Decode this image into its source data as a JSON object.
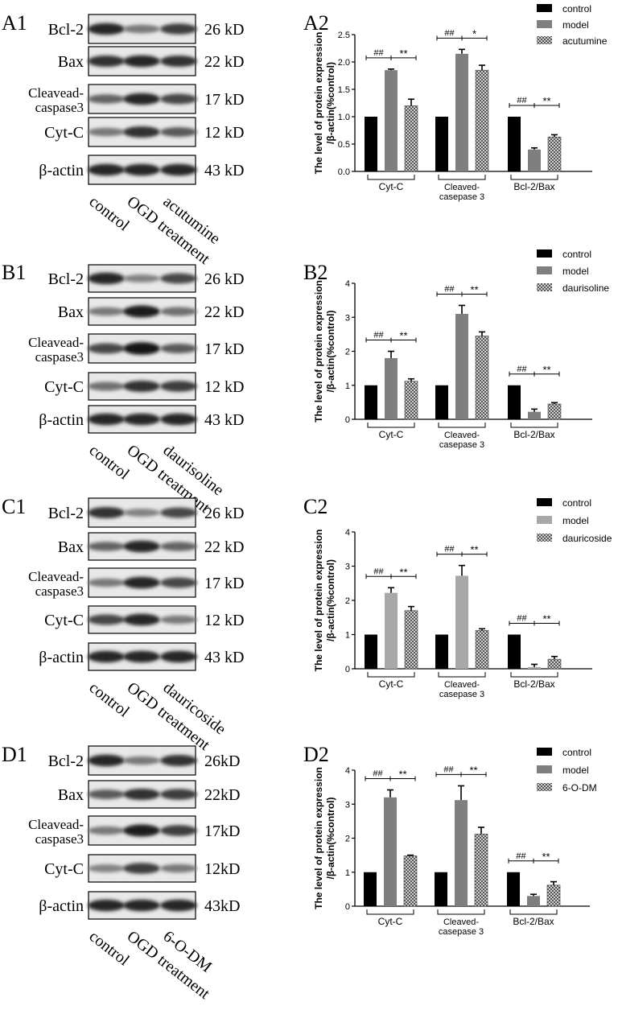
{
  "panels": [
    {
      "blot_label": "A1",
      "chart_label": "A2",
      "rows": [
        {
          "name": "Bcl-2",
          "kd": "26 kD",
          "bands": [
            0.85,
            0.45,
            0.75
          ]
        },
        {
          "name": "Bax",
          "kd": "22 kD",
          "bands": [
            0.8,
            0.85,
            0.8
          ]
        },
        {
          "name": "Cleavead-\ncaspase3",
          "kd": "17 kD",
          "bands": [
            0.55,
            0.85,
            0.7
          ]
        },
        {
          "name": "Cyt-C",
          "kd": "12 kD",
          "bands": [
            0.45,
            0.8,
            0.6
          ]
        },
        {
          "name": "β-actin",
          "kd": "43 kD",
          "bands": [
            0.85,
            0.85,
            0.85
          ]
        }
      ],
      "lanes": [
        "control",
        "OGD treatment",
        "acutumine"
      ],
      "chart": {
        "type": "bar",
        "ylabel": "The level of protein expression\n/β-actin(%control)",
        "categories": [
          "Cyt-C",
          "Cleaved-\ncasepase 3",
          "Bcl-2/Bax"
        ],
        "ylim": [
          0,
          2.5
        ],
        "yticks": [
          0,
          0.5,
          1.0,
          1.5,
          2.0,
          2.5
        ],
        "series": [
          {
            "name": "control",
            "values": [
              1.0,
              1.0,
              1.0
            ],
            "err": [
              0,
              0,
              0
            ]
          },
          {
            "name": "model",
            "values": [
              1.85,
              2.15,
              0.4
            ],
            "err": [
              0.02,
              0.08,
              0.03
            ]
          },
          {
            "name": "acutumine",
            "values": [
              1.2,
              1.85,
              0.63
            ],
            "err": [
              0.12,
              0.09,
              0.04
            ]
          }
        ],
        "sig": [
          [
            "##",
            "**"
          ],
          [
            "##",
            "*"
          ],
          [
            "##",
            "**"
          ]
        ]
      }
    },
    {
      "blot_label": "B1",
      "chart_label": "B2",
      "rows": [
        {
          "name": "Bcl-2",
          "kd": "26 kD",
          "bands": [
            0.85,
            0.4,
            0.7
          ]
        },
        {
          "name": "Bax",
          "kd": "22 kD",
          "bands": [
            0.45,
            0.9,
            0.5
          ]
        },
        {
          "name": "Cleavead-\ncaspase3",
          "kd": "17 kD",
          "bands": [
            0.7,
            0.95,
            0.6
          ]
        },
        {
          "name": "Cyt-C",
          "kd": "12 kD",
          "bands": [
            0.5,
            0.8,
            0.75
          ]
        },
        {
          "name": "β-actin",
          "kd": "43 kD",
          "bands": [
            0.85,
            0.85,
            0.85
          ]
        }
      ],
      "lanes": [
        "control",
        "OGD treatment",
        "daurisoline"
      ],
      "chart": {
        "type": "bar",
        "ylabel": "The level of protein expression\n/β-actin(%control)",
        "categories": [
          "Cyt-C",
          "Cleaved-\ncasepase 3",
          "Bcl-2/Bax"
        ],
        "ylim": [
          0,
          4
        ],
        "yticks": [
          0,
          1,
          2,
          3,
          4
        ],
        "series": [
          {
            "name": "control",
            "values": [
              1.0,
              1.0,
              1.0
            ],
            "err": [
              0,
              0,
              0
            ]
          },
          {
            "name": "model",
            "values": [
              1.8,
              3.1,
              0.22
            ],
            "err": [
              0.2,
              0.25,
              0.08
            ]
          },
          {
            "name": "daurisoline",
            "values": [
              1.12,
              2.45,
              0.45
            ],
            "err": [
              0.07,
              0.12,
              0.04
            ]
          }
        ],
        "sig": [
          [
            "##",
            "**"
          ],
          [
            "##",
            "**"
          ],
          [
            "##",
            "**"
          ]
        ]
      }
    },
    {
      "blot_label": "C1",
      "chart_label": "C2",
      "rows": [
        {
          "name": "Bcl-2",
          "kd": "26 kD",
          "bands": [
            0.8,
            0.4,
            0.7
          ]
        },
        {
          "name": "Bax",
          "kd": "22 kD",
          "bands": [
            0.55,
            0.85,
            0.55
          ]
        },
        {
          "name": "Cleavead-\ncaspase3",
          "kd": "17 kD",
          "bands": [
            0.45,
            0.85,
            0.7
          ]
        },
        {
          "name": "Cyt-C",
          "kd": "12 kD",
          "bands": [
            0.7,
            0.85,
            0.45
          ]
        },
        {
          "name": "β-actin",
          "kd": "43 kD",
          "bands": [
            0.85,
            0.85,
            0.85
          ]
        }
      ],
      "lanes": [
        "control",
        "OGD treatment",
        "dauricoside"
      ],
      "chart": {
        "type": "bar",
        "ylabel": "The level of protein expression\n/β-actin(%control)",
        "categories": [
          "Cyt-C",
          "Cleaved-\ncasepase 3",
          "Bcl-2/Bax"
        ],
        "ylim": [
          0,
          4
        ],
        "yticks": [
          0,
          1,
          2,
          3,
          4
        ],
        "series": [
          {
            "name": "control",
            "values": [
              1.0,
              1.0,
              1.0
            ],
            "err": [
              0,
              0,
              0
            ]
          },
          {
            "name": "model",
            "values": [
              2.22,
              2.72,
              0.05
            ],
            "err": [
              0.15,
              0.3,
              0.08
            ]
          },
          {
            "name": "dauricoside",
            "values": [
              1.7,
              1.12,
              0.28
            ],
            "err": [
              0.12,
              0.05,
              0.08
            ]
          }
        ],
        "sig": [
          [
            "##",
            "**"
          ],
          [
            "##",
            "**"
          ],
          [
            "##",
            "**"
          ]
        ]
      }
    },
    {
      "blot_label": "D1",
      "chart_label": "D2",
      "rows": [
        {
          "name": "Bcl-2",
          "kd": "26kD",
          "bands": [
            0.85,
            0.45,
            0.8
          ]
        },
        {
          "name": "Bax",
          "kd": "22kD",
          "bands": [
            0.6,
            0.8,
            0.75
          ]
        },
        {
          "name": "Cleavead-\ncaspase3",
          "kd": "17kD",
          "bands": [
            0.45,
            0.9,
            0.75
          ]
        },
        {
          "name": "Cyt-C",
          "kd": "12kD",
          "bands": [
            0.4,
            0.75,
            0.45
          ]
        },
        {
          "name": "β-actin",
          "kd": "43kD",
          "bands": [
            0.85,
            0.85,
            0.85
          ]
        }
      ],
      "lanes": [
        "control",
        "OGD treatment",
        "6-O-DM"
      ],
      "chart": {
        "type": "bar",
        "ylabel": "The level of protein expression\n/β-actin(%control)",
        "categories": [
          "Cyt-C",
          "Cleaved-\ncasepase 3",
          "Bcl-2/Bax"
        ],
        "ylim": [
          0,
          4
        ],
        "yticks": [
          0,
          1,
          2,
          3,
          4
        ],
        "series": [
          {
            "name": "control",
            "values": [
              1.0,
              1.0,
              1.0
            ],
            "err": [
              0,
              0,
              0
            ]
          },
          {
            "name": "model",
            "values": [
              3.2,
              3.12,
              0.3
            ],
            "err": [
              0.22,
              0.42,
              0.05
            ]
          },
          {
            "name": "6-O-DM",
            "values": [
              1.48,
              2.12,
              0.62
            ],
            "err": [
              0.02,
              0.2,
              0.1
            ]
          }
        ],
        "sig": [
          [
            "##",
            "**"
          ],
          [
            "##",
            "**"
          ],
          [
            "##",
            "**"
          ]
        ]
      }
    }
  ],
  "colors": {
    "control": "#000000",
    "model_dark": "#7f7f7f",
    "model_light": "#a8a8a8",
    "treatment": "#9a9a9a"
  }
}
